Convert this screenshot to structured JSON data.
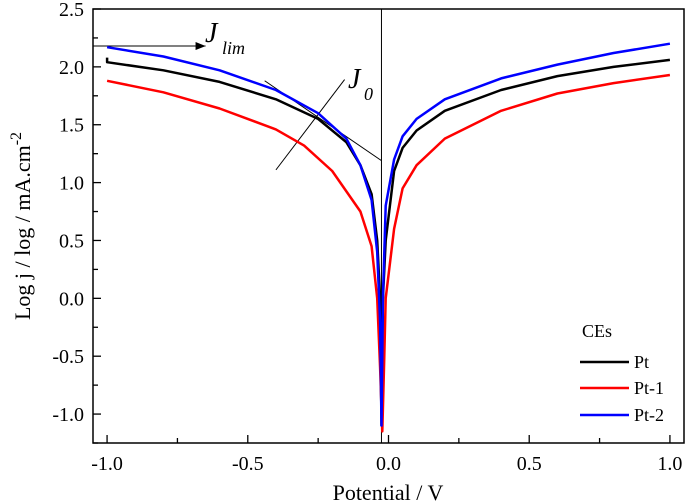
{
  "chart_data": {
    "type": "line",
    "xlabel": "Potential / V",
    "ylabel": "Log j / log / mA.cm",
    "ylabel_sup": "-2",
    "xlim": [
      -1.05,
      1.05
    ],
    "ylim": [
      -1.25,
      2.5
    ],
    "xticks": [
      -1.0,
      -0.5,
      0.0,
      0.5,
      1.0
    ],
    "xtick_labels": [
      "-1.0",
      "-0.5",
      "0.0",
      "0.5",
      "1.0"
    ],
    "yticks": [
      -1.0,
      -0.5,
      0.0,
      0.5,
      1.0,
      1.5,
      2.0,
      2.5
    ],
    "ytick_labels": [
      "-1.0",
      "-0.5",
      "0.0",
      "0.5",
      "1.0",
      "1.5",
      "2.0",
      "2.5"
    ],
    "grid": false,
    "legend": {
      "title": "CEs",
      "placement": "bottom-right"
    },
    "series": [
      {
        "name": "Pt",
        "color": "#000000",
        "x": [
          -1.0,
          -1.0,
          -0.8,
          -0.6,
          -0.4,
          -0.25,
          -0.15,
          -0.1,
          -0.06,
          -0.04,
          -0.03,
          -0.025,
          -0.02,
          -0.01,
          0.02,
          0.05,
          0.1,
          0.2,
          0.4,
          0.6,
          0.8,
          1.0
        ],
        "y": [
          2.08,
          2.04,
          1.97,
          1.87,
          1.72,
          1.55,
          1.35,
          1.15,
          0.9,
          0.5,
          0.0,
          -1.1,
          0.0,
          0.5,
          1.1,
          1.3,
          1.45,
          1.62,
          1.8,
          1.92,
          2.0,
          2.06
        ]
      },
      {
        "name": "Pt-1",
        "color": "#ff0000",
        "x": [
          -1.0,
          -0.8,
          -0.6,
          -0.4,
          -0.3,
          -0.2,
          -0.1,
          -0.06,
          -0.04,
          -0.03,
          -0.022,
          -0.015,
          -0.01,
          0.02,
          0.05,
          0.1,
          0.2,
          0.4,
          0.6,
          0.8,
          1.0
        ],
        "y": [
          1.88,
          1.78,
          1.64,
          1.46,
          1.32,
          1.1,
          0.75,
          0.45,
          0.0,
          -0.6,
          -1.15,
          -0.5,
          0.0,
          0.6,
          0.95,
          1.15,
          1.38,
          1.62,
          1.77,
          1.86,
          1.93
        ]
      },
      {
        "name": "Pt-2",
        "color": "#0000ff",
        "x": [
          -1.0,
          -0.8,
          -0.6,
          -0.4,
          -0.25,
          -0.15,
          -0.1,
          -0.06,
          -0.04,
          -0.03,
          -0.025,
          -0.02,
          -0.01,
          0.02,
          0.05,
          0.1,
          0.2,
          0.4,
          0.6,
          0.8,
          1.0
        ],
        "y": [
          2.17,
          2.09,
          1.97,
          1.8,
          1.6,
          1.38,
          1.15,
          0.85,
          0.4,
          -0.2,
          -1.1,
          0.0,
          0.8,
          1.2,
          1.4,
          1.55,
          1.72,
          1.9,
          2.02,
          2.12,
          2.2
        ]
      }
    ],
    "annotations": [
      {
        "text": "J",
        "sub": "lim",
        "type": "arrow",
        "from": [
          -1.05,
          2.18
        ],
        "to": [
          -0.65,
          2.18
        ]
      },
      {
        "text": "J",
        "sub": "0",
        "type": "tangent-lines",
        "lines": [
          [
            [
              -0.44,
              1.88
            ],
            [
              -0.025,
              1.19
            ]
          ],
          [
            [
              -0.4,
              1.11
            ],
            [
              -0.156,
              1.89
            ]
          ]
        ]
      },
      {
        "type": "vline",
        "x": -0.025
      }
    ]
  }
}
